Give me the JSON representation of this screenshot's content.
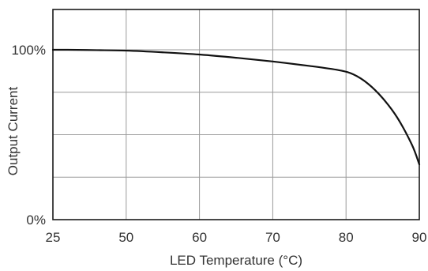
{
  "chart_data": {
    "type": "line",
    "title": "",
    "xlabel": "LED Temperature (°C)",
    "ylabel": "Output Current",
    "x_ticks": [
      "25",
      "50",
      "60",
      "70",
      "80",
      "90"
    ],
    "y_ticks": [
      "0%",
      "100%"
    ],
    "grid": true,
    "series": [
      {
        "x": [
          25,
          30,
          40,
          50,
          55,
          60,
          65,
          70,
          75,
          79,
          81,
          83,
          85,
          87,
          89,
          90
        ],
        "y": [
          100,
          100,
          99.8,
          99.5,
          98.5,
          97.2,
          95.3,
          93.1,
          90.5,
          88.0,
          85.5,
          80.0,
          71.5,
          60.0,
          44.0,
          32.5
        ]
      }
    ]
  }
}
